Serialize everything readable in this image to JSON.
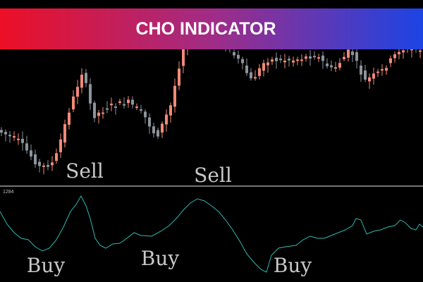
{
  "banner": {
    "title": "CHO INDICATOR"
  },
  "annotations": {
    "sell": [
      "Sell",
      "Sell"
    ],
    "buy": [
      "Buy",
      "Buy",
      "Buy"
    ]
  },
  "oscillator": {
    "label": "1284"
  }
}
